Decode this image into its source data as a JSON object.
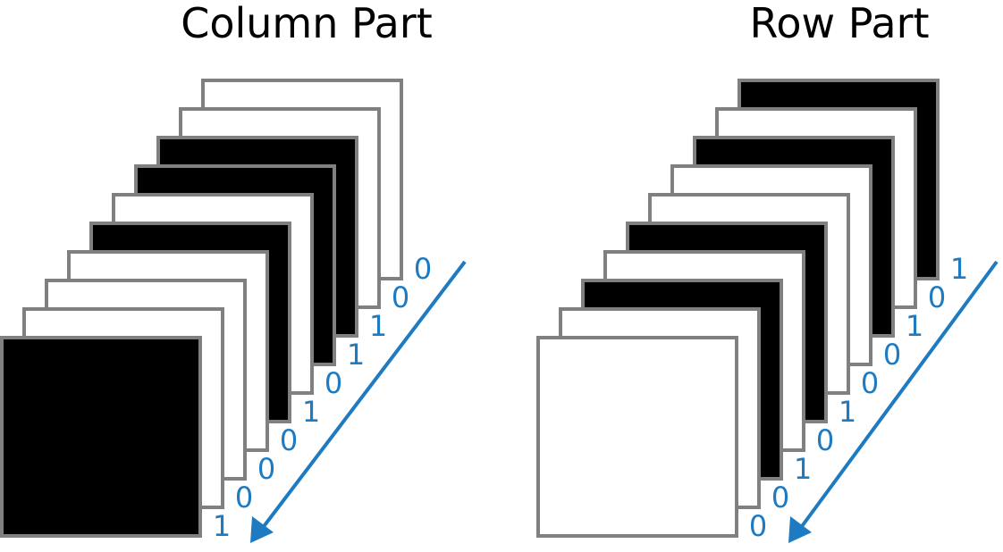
{
  "colors": {
    "bit_one": "#000000",
    "bit_zero": "#ffffff",
    "frame_border": "#808080",
    "arrow": "#1f7bc1",
    "label": "#1f7bc1"
  },
  "panels": [
    {
      "title": "Column Part",
      "bits": [
        1,
        0,
        0,
        0,
        1,
        0,
        1,
        1,
        0,
        0
      ]
    },
    {
      "title": "Row Part",
      "bits": [
        0,
        0,
        1,
        0,
        1,
        0,
        0,
        1,
        0,
        1
      ]
    }
  ]
}
